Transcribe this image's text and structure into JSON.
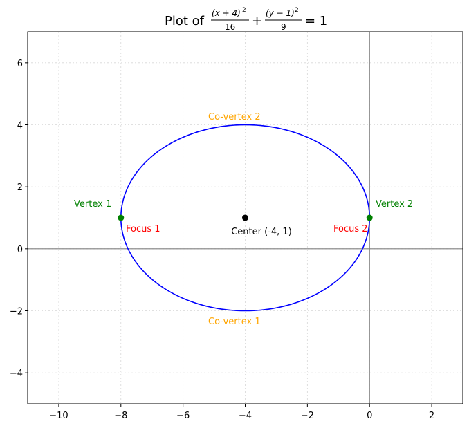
{
  "chart_data": {
    "type": "line",
    "title": {
      "prefix": "Plot of",
      "term1_num": "(x + 4)",
      "term1_den": "16",
      "term2_num": "(y − 1)",
      "term2_den": "9",
      "plus": "+",
      "rhs": "= 1",
      "exp": "2"
    },
    "xlabel": "",
    "ylabel": "",
    "xlim": [
      -11,
      3
    ],
    "ylim": [
      -5,
      7
    ],
    "xticks": [
      -10,
      -8,
      -6,
      -4,
      -2,
      0,
      2
    ],
    "yticks": [
      -4,
      -2,
      0,
      2,
      4,
      6
    ],
    "xtick_labels": [
      "−10",
      "−8",
      "−6",
      "−4",
      "−2",
      "0",
      "2"
    ],
    "ytick_labels": [
      "−4",
      "−2",
      "0",
      "2",
      "4",
      "6"
    ],
    "grid": true,
    "ellipse": {
      "cx": -4,
      "cy": 1,
      "a": 4,
      "b": 3,
      "color": "#0000ff"
    },
    "points": [
      {
        "name": "center",
        "x": -4,
        "y": 1,
        "color": "#000000",
        "label": "Center (-4, 1)"
      },
      {
        "name": "vertex-1",
        "x": -8,
        "y": 1,
        "color": "#008000",
        "label": "Vertex 1"
      },
      {
        "name": "vertex-2",
        "x": 0,
        "y": 1,
        "color": "#008000",
        "label": "Vertex 2"
      }
    ],
    "annotations": [
      {
        "name": "focus-1-label",
        "text": "Focus 1",
        "color": "#ff0000"
      },
      {
        "name": "focus-2-label",
        "text": "Focus 2",
        "color": "#ff0000"
      },
      {
        "name": "covertex-2-label",
        "text": "Co-vertex 2",
        "color": "#ffa500"
      },
      {
        "name": "covertex-1-label",
        "text": "Co-vertex 1",
        "color": "#ffa500"
      }
    ],
    "axis_line_color": "#808080"
  }
}
